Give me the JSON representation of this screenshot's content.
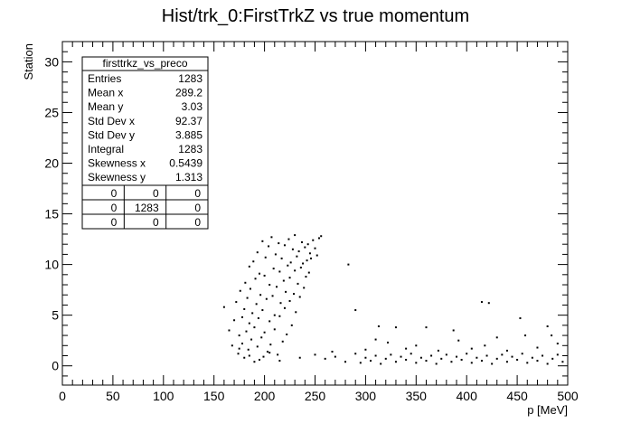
{
  "chart_data": {
    "type": "scatter",
    "title": "Hist/trk_0:FirstTrkZ vs true momentum",
    "xlabel": "p [MeV]",
    "ylabel": "Station",
    "xlim": [
      0,
      500
    ],
    "ylim": [
      -1.9,
      32
    ],
    "x_ticks": [
      0,
      50,
      100,
      150,
      200,
      250,
      300,
      350,
      400,
      450,
      500
    ],
    "y_ticks": [
      0,
      5,
      10,
      15,
      20,
      25,
      30
    ],
    "grid": false,
    "legend_placement": "top-left",
    "marker_color": "#000000",
    "stats_box": {
      "name": "firsttrkz_vs_preco",
      "rows": [
        {
          "label": "Entries",
          "value": "1283"
        },
        {
          "label": "Mean x",
          "value": "289.2"
        },
        {
          "label": "Mean y",
          "value": "3.03"
        },
        {
          "label": "Std Dev x",
          "value": "92.37"
        },
        {
          "label": "Std Dev y",
          "value": "3.885"
        },
        {
          "label": "Integral",
          "value": "1283"
        },
        {
          "label": "Skewness x",
          "value": "0.5439"
        },
        {
          "label": "Skewness y",
          "value": "1.313"
        }
      ],
      "overflow_grid": [
        [
          "0",
          "0",
          "0"
        ],
        [
          "0",
          "1283",
          "0"
        ],
        [
          "0",
          "0",
          "0"
        ]
      ]
    },
    "series": [
      {
        "points": [
          [
            160,
            5.8
          ],
          [
            165,
            3.5
          ],
          [
            168,
            2.0
          ],
          [
            170,
            4.5
          ],
          [
            172,
            6.3
          ],
          [
            174,
            1.2
          ],
          [
            175,
            3.0
          ],
          [
            176,
            7.4
          ],
          [
            178,
            4.8
          ],
          [
            178,
            2.2
          ],
          [
            180,
            5.6
          ],
          [
            180,
            0.8
          ],
          [
            181,
            8.2
          ],
          [
            182,
            3.4
          ],
          [
            183,
            6.7
          ],
          [
            184,
            1.6
          ],
          [
            185,
            9.8
          ],
          [
            185,
            4.2
          ],
          [
            186,
            7.6
          ],
          [
            187,
            2.6
          ],
          [
            188,
            5.2
          ],
          [
            189,
            10.3
          ],
          [
            190,
            0.4
          ],
          [
            190,
            3.8
          ],
          [
            191,
            8.6
          ],
          [
            192,
            6.1
          ],
          [
            193,
            11.2
          ],
          [
            193,
            1.9
          ],
          [
            194,
            4.7
          ],
          [
            195,
            9.1
          ],
          [
            196,
            7.0
          ],
          [
            197,
            2.8
          ],
          [
            198,
            12.3
          ],
          [
            198,
            5.5
          ],
          [
            199,
            0.9
          ],
          [
            200,
            8.9
          ],
          [
            200,
            3.3
          ],
          [
            201,
            10.7
          ],
          [
            202,
            6.6
          ],
          [
            203,
            1.4
          ],
          [
            204,
            11.8
          ],
          [
            205,
            4.4
          ],
          [
            205,
            8.0
          ],
          [
            206,
            2.1
          ],
          [
            207,
            12.7
          ],
          [
            208,
            6.9
          ],
          [
            209,
            9.6
          ],
          [
            210,
            3.6
          ],
          [
            210,
            5.0
          ],
          [
            211,
            11.0
          ],
          [
            212,
            7.8
          ],
          [
            213,
            1.1
          ],
          [
            214,
            12.1
          ],
          [
            215,
            4.9
          ],
          [
            215,
            9.3
          ],
          [
            216,
            6.2
          ],
          [
            217,
            10.6
          ],
          [
            218,
            2.4
          ],
          [
            219,
            8.4
          ],
          [
            220,
            11.9
          ],
          [
            220,
            5.7
          ],
          [
            221,
            7.3
          ],
          [
            222,
            3.1
          ],
          [
            223,
            9.9
          ],
          [
            224,
            12.5
          ],
          [
            225,
            6.4
          ],
          [
            225,
            8.7
          ],
          [
            226,
            10.2
          ],
          [
            227,
            4.0
          ],
          [
            228,
            11.5
          ],
          [
            229,
            7.1
          ],
          [
            230,
            9.4
          ],
          [
            230,
            12.9
          ],
          [
            231,
            5.3
          ],
          [
            232,
            10.8
          ],
          [
            233,
            8.1
          ],
          [
            234,
            11.3
          ],
          [
            235,
            6.8
          ],
          [
            236,
            9.7
          ],
          [
            237,
            12.2
          ],
          [
            238,
            10.1
          ],
          [
            239,
            7.7
          ],
          [
            240,
            11.7
          ],
          [
            241,
            8.8
          ],
          [
            242,
            10.4
          ],
          [
            243,
            12.0
          ],
          [
            244,
            9.2
          ],
          [
            245,
            11.1
          ],
          [
            246,
            10.6
          ],
          [
            248,
            12.4
          ],
          [
            250,
            11.6
          ],
          [
            252,
            10.9
          ],
          [
            254,
            12.6
          ],
          [
            256,
            12.8
          ],
          [
            185,
            1.0
          ],
          [
            195,
            0.6
          ],
          [
            205,
            1.3
          ],
          [
            215,
            0.5
          ],
          [
            175,
            1.7
          ],
          [
            235,
            0.8
          ],
          [
            250,
            1.1
          ],
          [
            260,
            0.7
          ],
          [
            270,
            0.9
          ],
          [
            280,
            0.4
          ],
          [
            290,
            1.2
          ],
          [
            295,
            0.3
          ],
          [
            300,
            0.8
          ],
          [
            305,
            0.5
          ],
          [
            310,
            1.0
          ],
          [
            315,
            0.2
          ],
          [
            320,
            0.7
          ],
          [
            325,
            1.1
          ],
          [
            330,
            0.4
          ],
          [
            335,
            0.9
          ],
          [
            340,
            0.6
          ],
          [
            345,
            1.2
          ],
          [
            350,
            0.3
          ],
          [
            355,
            0.8
          ],
          [
            360,
            0.5
          ],
          [
            365,
            1.0
          ],
          [
            370,
            0.2
          ],
          [
            375,
            0.7
          ],
          [
            380,
            1.1
          ],
          [
            385,
            0.4
          ],
          [
            390,
            0.9
          ],
          [
            395,
            0.6
          ],
          [
            400,
            1.2
          ],
          [
            405,
            0.3
          ],
          [
            410,
            0.8
          ],
          [
            415,
            0.5
          ],
          [
            420,
            1.0
          ],
          [
            425,
            0.2
          ],
          [
            430,
            0.7
          ],
          [
            435,
            1.1
          ],
          [
            440,
            0.4
          ],
          [
            445,
            0.9
          ],
          [
            450,
            0.6
          ],
          [
            455,
            1.2
          ],
          [
            460,
            0.3
          ],
          [
            465,
            0.8
          ],
          [
            470,
            0.5
          ],
          [
            475,
            1.0
          ],
          [
            480,
            0.2
          ],
          [
            485,
            0.7
          ],
          [
            490,
            1.1
          ],
          [
            495,
            0.4
          ],
          [
            283,
            10.0
          ],
          [
            290,
            5.5
          ],
          [
            313,
            3.9
          ],
          [
            330,
            3.8
          ],
          [
            360,
            3.8
          ],
          [
            310,
            2.6
          ],
          [
            322,
            2.3
          ],
          [
            350,
            2.0
          ],
          [
            387,
            3.5
          ],
          [
            392,
            2.5
          ],
          [
            415,
            6.3
          ],
          [
            422,
            6.2
          ],
          [
            430,
            2.8
          ],
          [
            453,
            4.7
          ],
          [
            458,
            3.0
          ],
          [
            480,
            3.9
          ],
          [
            484,
            3.0
          ],
          [
            490,
            2.2
          ],
          [
            405,
            1.7
          ],
          [
            418,
            2.0
          ],
          [
            372,
            1.5
          ],
          [
            340,
            1.7
          ],
          [
            300,
            1.6
          ],
          [
            267,
            1.4
          ],
          [
            440,
            1.5
          ],
          [
            470,
            1.8
          ]
        ]
      }
    ]
  }
}
